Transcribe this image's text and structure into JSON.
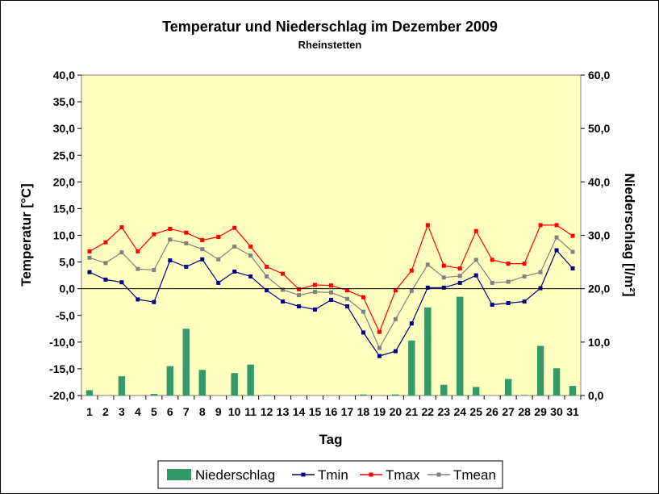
{
  "chart_data": {
    "type": "bar",
    "title": "Temperatur und Niederschlag im Dezember 2009",
    "subtitle": "Rheinstetten",
    "xlabel": "Tag",
    "ylabel_left": "Temperatur [°C]",
    "ylabel_right": "Niederschlag [l/m²]",
    "ylim_left": [
      -20,
      40
    ],
    "ylim_right": [
      0,
      60
    ],
    "yticks_left": [
      "40,0",
      "35,0",
      "30,0",
      "25,0",
      "20,0",
      "15,0",
      "10,0",
      "5,0",
      "0,0",
      "-5,0",
      "-10,0",
      "-15,0",
      "-20,0"
    ],
    "yticks_right": [
      "60,0",
      "50,0",
      "40,0",
      "30,0",
      "20,0",
      "10,0",
      "0,0"
    ],
    "categories": [
      "1",
      "2",
      "3",
      "4",
      "5",
      "6",
      "7",
      "8",
      "9",
      "10",
      "11",
      "12",
      "13",
      "14",
      "15",
      "16",
      "17",
      "18",
      "19",
      "20",
      "21",
      "22",
      "23",
      "24",
      "25",
      "26",
      "27",
      "28",
      "29",
      "30",
      "31"
    ],
    "grid": "horizontal-zero-line",
    "legend_position": "bottom",
    "series": [
      {
        "name": "Niederschlag",
        "type": "bar",
        "axis": "right",
        "color": "#339966",
        "values": [
          1.0,
          0,
          3.6,
          0,
          0.3,
          5.5,
          12.5,
          4.8,
          0,
          4.2,
          5.8,
          0.1,
          0,
          0,
          0,
          0,
          0,
          0.2,
          0,
          0.2,
          10.3,
          16.5,
          2.0,
          18.5,
          1.6,
          0,
          3.1,
          0.1,
          9.3,
          5.1,
          1.8
        ]
      },
      {
        "name": "Tmin",
        "type": "line",
        "axis": "left",
        "color": "#000080",
        "values": [
          3.1,
          1.7,
          1.2,
          -2.0,
          -2.5,
          5.3,
          4.1,
          5.5,
          1.1,
          3.2,
          2.3,
          -0.3,
          -2.4,
          -3.3,
          -3.9,
          -2.1,
          -3.3,
          -8.2,
          -12.6,
          -11.7,
          -6.5,
          0.2,
          0.2,
          1.1,
          2.5,
          -3.0,
          -2.7,
          -2.4,
          0.1,
          7.2,
          3.8
        ]
      },
      {
        "name": "Tmax",
        "type": "line",
        "axis": "left",
        "color": "#ff0000",
        "values": [
          7.0,
          8.7,
          11.5,
          7.0,
          10.2,
          11.2,
          10.5,
          9.1,
          9.7,
          11.4,
          7.9,
          4.1,
          2.8,
          -0.1,
          0.7,
          0.6,
          -0.3,
          -1.6,
          -8.1,
          -0.3,
          3.4,
          11.9,
          4.3,
          3.8,
          10.8,
          5.4,
          4.7,
          4.7,
          11.9,
          11.9,
          9.9
        ]
      },
      {
        "name": "Tmean",
        "type": "line",
        "axis": "left",
        "color": "#808080",
        "values": [
          5.8,
          4.8,
          6.8,
          3.7,
          3.5,
          9.2,
          8.5,
          7.4,
          5.5,
          7.9,
          6.2,
          2.3,
          -0.2,
          -1.2,
          -0.6,
          -0.7,
          -1.9,
          -4.3,
          -11.1,
          -5.7,
          -0.4,
          4.5,
          2.1,
          2.4,
          5.4,
          1.1,
          1.3,
          2.3,
          3.1,
          9.6,
          6.9
        ]
      }
    ]
  }
}
